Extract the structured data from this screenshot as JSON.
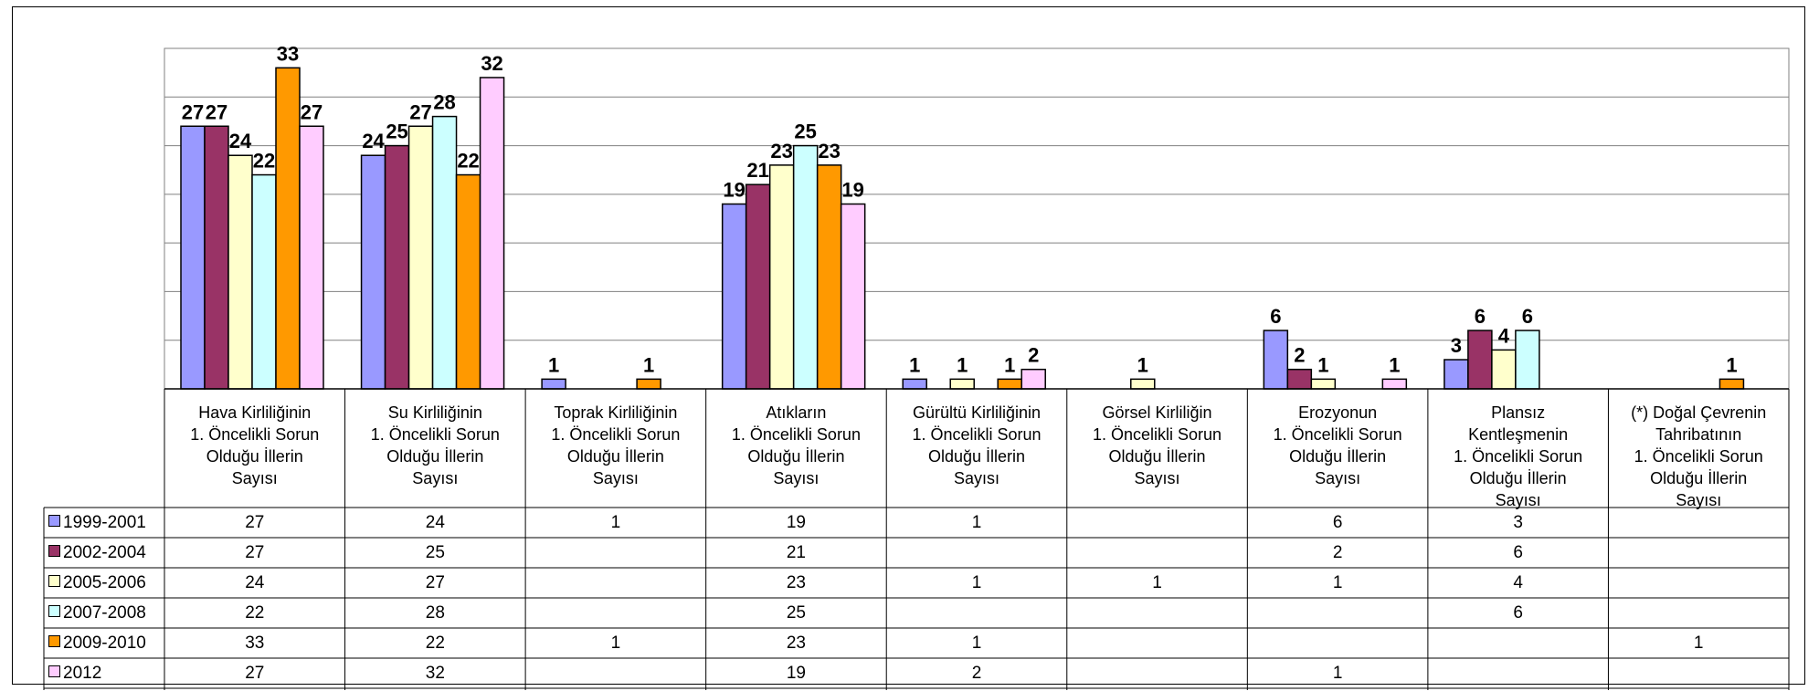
{
  "chart_data": {
    "type": "bar",
    "categories": [
      "Hava Kirliliğinin\n1. Öncelikli Sorun\nOlduğu İllerin\nSayısı",
      "Su Kirliliğinin\n1. Öncelikli Sorun\nOlduğu İllerin\nSayısı",
      "Toprak Kirliliğinin\n1. Öncelikli Sorun\nOlduğu İllerin\nSayısı",
      "Atıkların\n1. Öncelikli Sorun\nOlduğu İllerin\nSayısı",
      "Gürültü Kirliliğinin\n1. Öncelikli Sorun\nOlduğu İllerin\nSayısı",
      "Görsel Kirliliğin\n1. Öncelikli Sorun\nOlduğu İllerin\nSayısı",
      "Erozyonun\n1. Öncelikli Sorun\nOlduğu İllerin\nSayısı",
      "Plansız\nKentleşmenin\n1. Öncelikli Sorun\nOlduğu İllerin\nSayısı",
      "(*) Doğal Çevrenin\nTahribatının\n1. Öncelikli Sorun\nOlduğu İllerin\nSayısı"
    ],
    "series": [
      {
        "name": "1999-2001",
        "color": "#9999ff",
        "values": [
          27,
          24,
          1,
          19,
          1,
          null,
          6,
          3,
          null
        ]
      },
      {
        "name": "2002-2004",
        "color": "#993366",
        "values": [
          27,
          25,
          null,
          21,
          null,
          null,
          2,
          6,
          null
        ]
      },
      {
        "name": "2005-2006",
        "color": "#ffffcc",
        "values": [
          24,
          27,
          null,
          23,
          1,
          1,
          1,
          4,
          null
        ]
      },
      {
        "name": "2007-2008",
        "color": "#ccffff",
        "values": [
          22,
          28,
          null,
          25,
          null,
          null,
          null,
          6,
          null
        ]
      },
      {
        "name": "2009-2010",
        "color": "#ff9900",
        "values": [
          33,
          22,
          1,
          23,
          1,
          null,
          null,
          null,
          1
        ]
      },
      {
        "name": "2012",
        "color": "#ffccff",
        "values": [
          27,
          32,
          null,
          19,
          2,
          null,
          1,
          null,
          null
        ]
      }
    ],
    "ylim": [
      0,
      35
    ],
    "grid": true,
    "legend": "data-table",
    "title": "",
    "xlabel": "",
    "ylabel": ""
  }
}
